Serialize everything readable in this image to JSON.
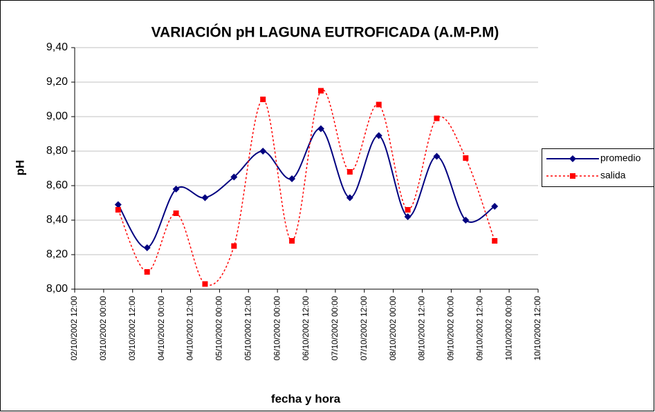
{
  "chart_data": {
    "type": "line",
    "title": "VARIACIÓN pH LAGUNA EUTROFICADA (A.M-P.M)",
    "x_label": "fecha y hora",
    "y_label": "pH",
    "x": [
      "2002-10-03T06:00",
      "2002-10-03T18:00",
      "2002-10-04T06:00",
      "2002-10-04T18:00",
      "2002-10-05T06:00",
      "2002-10-05T18:00",
      "2002-10-06T06:00",
      "2002-10-06T18:00",
      "2002-10-07T06:00",
      "2002-10-07T18:00",
      "2002-10-08T06:00",
      "2002-10-08T18:00",
      "2002-10-09T06:00",
      "2002-10-09T18:00"
    ],
    "series": [
      {
        "name": "promedio",
        "color": "#000080",
        "dash": false,
        "marker": "diamond",
        "values": [
          8.49,
          8.24,
          8.58,
          8.53,
          8.65,
          8.8,
          8.64,
          8.93,
          8.53,
          8.89,
          8.42,
          8.77,
          8.4,
          8.48
        ]
      },
      {
        "name": "salida",
        "color": "#ff0000",
        "dash": true,
        "marker": "square",
        "values": [
          8.46,
          8.1,
          8.44,
          8.03,
          8.25,
          9.1,
          8.28,
          9.15,
          8.68,
          9.07,
          8.46,
          8.99,
          8.76,
          8.28
        ]
      }
    ],
    "smooth": true,
    "grid": true,
    "legend": "right",
    "xlim": [
      "2002-10-02T12:00",
      "2002-10-10T12:00"
    ],
    "xticks": [
      {
        "value": "2002-10-02T12:00",
        "label": "02/10/2002 12:00"
      },
      {
        "value": "2002-10-03T00:00",
        "label": "03/10/2002 00:00"
      },
      {
        "value": "2002-10-03T12:00",
        "label": "03/10/2002 12:00"
      },
      {
        "value": "2002-10-04T00:00",
        "label": "04/10/2002 00:00"
      },
      {
        "value": "2002-10-04T12:00",
        "label": "04/10/2002 12:00"
      },
      {
        "value": "2002-10-05T00:00",
        "label": "05/10/2002 00:00"
      },
      {
        "value": "2002-10-05T12:00",
        "label": "05/10/2002 12:00"
      },
      {
        "value": "2002-10-06T00:00",
        "label": "06/10/2002 00:00"
      },
      {
        "value": "2002-10-06T12:00",
        "label": "06/10/2002 12:00"
      },
      {
        "value": "2002-10-07T00:00",
        "label": "07/10/2002 00:00"
      },
      {
        "value": "2002-10-07T12:00",
        "label": "07/10/2002 12:00"
      },
      {
        "value": "2002-10-08T00:00",
        "label": "08/10/2002 00:00"
      },
      {
        "value": "2002-10-08T12:00",
        "label": "08/10/2002 12:00"
      },
      {
        "value": "2002-10-09T00:00",
        "label": "09/10/2002 00:00"
      },
      {
        "value": "2002-10-09T12:00",
        "label": "09/10/2002 12:00"
      },
      {
        "value": "2002-10-10T00:00",
        "label": "10/10/2002 00:00"
      },
      {
        "value": "2002-10-10T12:00",
        "label": "10/10/2002 12:00"
      }
    ],
    "ylim": [
      8.0,
      9.4
    ],
    "yticks": [
      {
        "value": 8.0,
        "label": "8,00"
      },
      {
        "value": 8.2,
        "label": "8,20"
      },
      {
        "value": 8.4,
        "label": "8,40"
      },
      {
        "value": 8.6,
        "label": "8,60"
      },
      {
        "value": 8.8,
        "label": "8,80"
      },
      {
        "value": 9.0,
        "label": "9,00"
      },
      {
        "value": 9.2,
        "label": "9,20"
      },
      {
        "value": 9.4,
        "label": "9,40"
      }
    ]
  }
}
